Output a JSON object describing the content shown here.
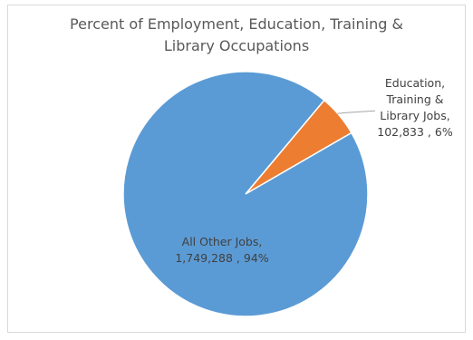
{
  "chart_data": {
    "type": "pie",
    "title_lines": [
      "Percent of Employment, Education, Training &",
      "Library Occupations"
    ],
    "slices": [
      {
        "label_lines": [
          "Education,",
          "Training &",
          "Library Jobs,",
          "102,833 , 6%"
        ],
        "value": 102833,
        "percent": 6,
        "color": "#ED7D31"
      },
      {
        "label_lines": [
          "All Other Jobs,",
          "1,749,288 , 94%"
        ],
        "value": 1749288,
        "percent": 94,
        "color": "#5B9BD5"
      }
    ],
    "legend": "none"
  }
}
